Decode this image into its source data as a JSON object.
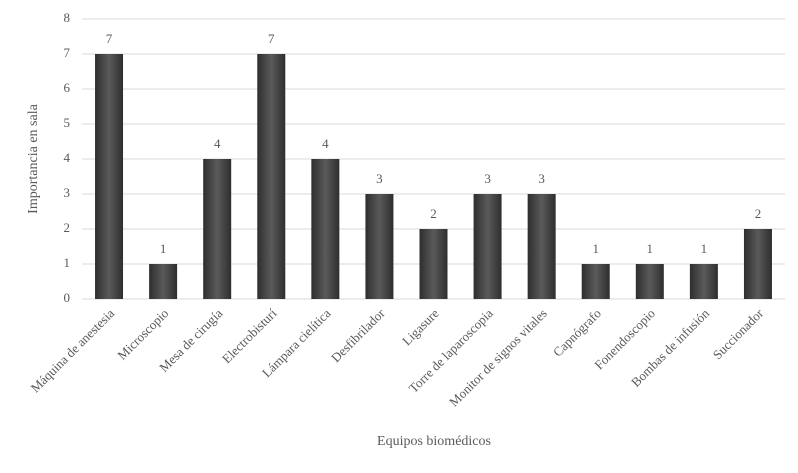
{
  "chart_data": {
    "type": "bar",
    "categories": [
      "Máquina de anestesia",
      "Microscopio",
      "Mesa de cirugía",
      "Electrobisturí",
      "Lámpara cielítica",
      "Desfibrilador",
      "Ligasure",
      "Torre de laparoscopia",
      "Monitor de signos vitales",
      "Capnógrafo",
      "Fonendoscopio",
      "Bombas de infusión",
      "Succionador"
    ],
    "values": [
      7,
      1,
      4,
      7,
      4,
      3,
      2,
      3,
      3,
      1,
      1,
      1,
      2
    ],
    "color": "#5a5a5a",
    "ylim": [
      0,
      8
    ],
    "yticks": [
      0,
      1,
      2,
      3,
      4,
      5,
      6,
      7,
      8
    ],
    "grid": true,
    "x_label": "Equipos biomédicos",
    "y_label": "Importancia en sala"
  }
}
